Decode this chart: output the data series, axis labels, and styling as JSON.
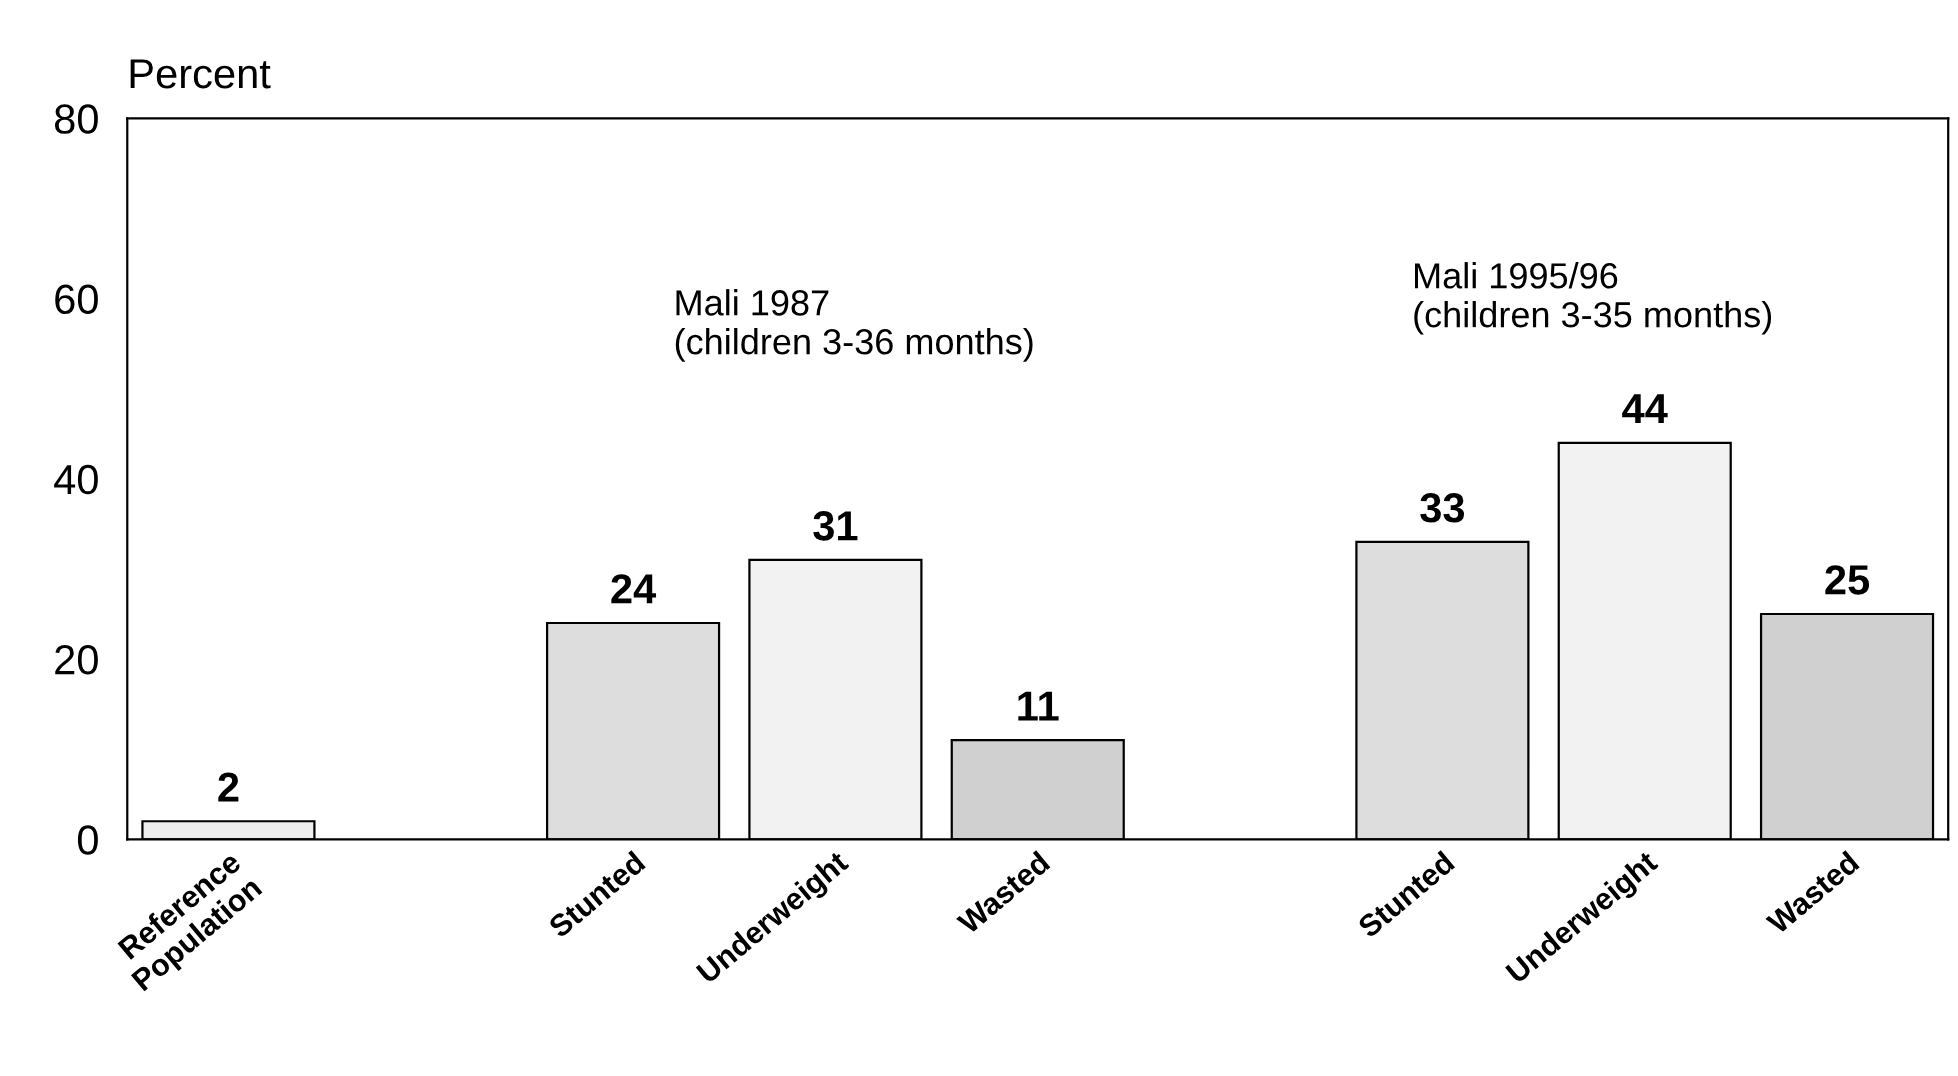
{
  "chart_data": {
    "type": "bar",
    "ylabel": "Percent",
    "categories": [
      "Reference\nPopulation",
      null,
      "Stunted",
      "Underweight",
      "Wasted",
      null,
      "Stunted",
      "Underweight",
      "Wasted"
    ],
    "values": [
      2,
      null,
      24,
      31,
      11,
      null,
      33,
      44,
      25
    ],
    "colors": [
      "#eeeeee",
      null,
      "#dddddd",
      "#f2f2f2",
      "#d0d0d0",
      null,
      "#dddddd",
      "#f2f2f2",
      "#d0d0d0"
    ],
    "data_labels": true,
    "annotations": [
      "Mali 1987\n(children 3-36 months)",
      "Mali 1995/96\n(children 3-35 months)"
    ],
    "ylim": [
      0,
      80
    ],
    "yticks": [
      0,
      20,
      40,
      60,
      80
    ],
    "grid": false
  }
}
